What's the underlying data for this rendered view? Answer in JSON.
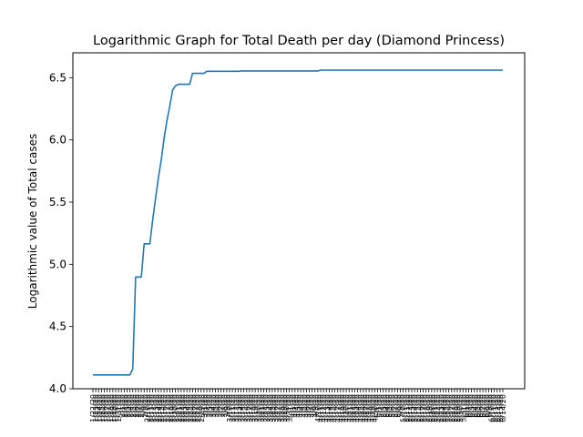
{
  "chart_data": {
    "type": "line",
    "title": "Logarithmic Graph for Total Death per day (Diamond Princess)",
    "xlabel": "",
    "ylabel": "Logarithmic value of Total cases",
    "ylim": [
      4.0,
      6.7
    ],
    "yticks": [
      "4.0",
      "4.5",
      "5.0",
      "5.5",
      "6.0",
      "6.5"
    ],
    "grid": false,
    "xticks_start": "1/22/20",
    "xticks_end": "6/14/20",
    "series": [
      {
        "color": "#1f77b4",
        "x_start": "1/22/20",
        "x_end": "6/14/20",
        "values": [
          4.111,
          4.111,
          4.111,
          4.111,
          4.111,
          4.111,
          4.111,
          4.111,
          4.111,
          4.111,
          4.111,
          4.111,
          4.111,
          4.111,
          4.159,
          4.898,
          4.898,
          4.898,
          5.165,
          5.165,
          5.165,
          5.357,
          5.529,
          5.695,
          5.838,
          6.011,
          6.155,
          6.27,
          6.401,
          6.434,
          6.447,
          6.447,
          6.447,
          6.447,
          6.447,
          6.535,
          6.535,
          6.535,
          6.535,
          6.535,
          6.551,
          6.551,
          6.551,
          6.551,
          6.551,
          6.551,
          6.551,
          6.551,
          6.551,
          6.551,
          6.551,
          6.551,
          6.554,
          6.554,
          6.554,
          6.554,
          6.554,
          6.554,
          6.554,
          6.554,
          6.554,
          6.554,
          6.554,
          6.554,
          6.554,
          6.554,
          6.554,
          6.554,
          6.554,
          6.554,
          6.554,
          6.554,
          6.554,
          6.554,
          6.554,
          6.554,
          6.554,
          6.554,
          6.554,
          6.554,
          6.561,
          6.561,
          6.561,
          6.561,
          6.561,
          6.561,
          6.561,
          6.561,
          6.561,
          6.561,
          6.561,
          6.561,
          6.561,
          6.561,
          6.561,
          6.561,
          6.561,
          6.561,
          6.561,
          6.561,
          6.561,
          6.561,
          6.561,
          6.561,
          6.561,
          6.561,
          6.561,
          6.561,
          6.561,
          6.561,
          6.561,
          6.561,
          6.561,
          6.561,
          6.561,
          6.561,
          6.561,
          6.561,
          6.561,
          6.561,
          6.561,
          6.561,
          6.561,
          6.561,
          6.561,
          6.561,
          6.561,
          6.561,
          6.561,
          6.561,
          6.561,
          6.561,
          6.561,
          6.561,
          6.561,
          6.561,
          6.561,
          6.561,
          6.561,
          6.561,
          6.561,
          6.561,
          6.561,
          6.561,
          6.561
        ]
      }
    ]
  }
}
